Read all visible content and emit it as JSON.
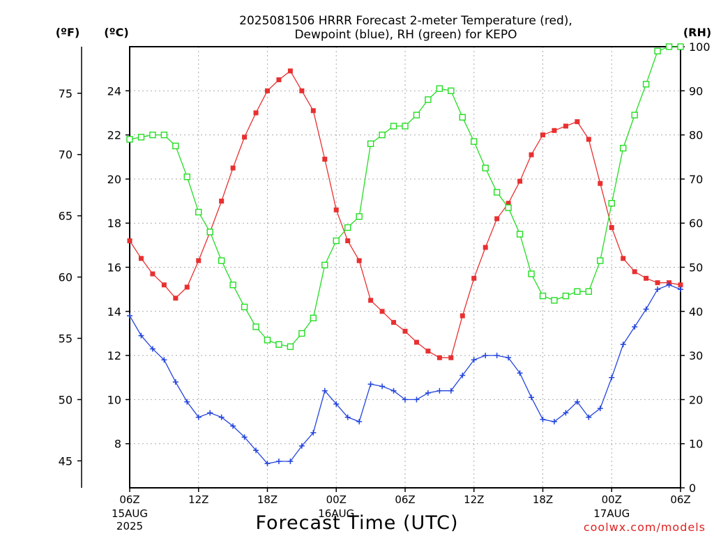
{
  "chart_data": {
    "type": "line",
    "title_line1": "2025081506 HRRR Forecast 2-meter Temperature (red),",
    "title_line2": "Dewpoint (blue), RH (green) for KEPO",
    "xlabel": "Forecast Time (UTC)",
    "credit": "coolwx.com/models",
    "units": {
      "left_f": "(ºF)",
      "left_c": "(ºC)",
      "right_rh": "(RH)"
    },
    "x_ticks": [
      {
        "h": 0,
        "label": "06Z",
        "sub1": "15AUG",
        "sub2": "2025"
      },
      {
        "h": 6,
        "label": "12Z"
      },
      {
        "h": 12,
        "label": "18Z"
      },
      {
        "h": 18,
        "label": "00Z",
        "sub1": "16AUG"
      },
      {
        "h": 24,
        "label": "06Z"
      },
      {
        "h": 30,
        "label": "12Z"
      },
      {
        "h": 36,
        "label": "18Z"
      },
      {
        "h": 42,
        "label": "00Z",
        "sub1": "17AUG"
      },
      {
        "h": 48,
        "label": "06Z"
      }
    ],
    "xlim": [
      0,
      48
    ],
    "ylim_c": [
      6,
      26
    ],
    "ylim_rh": [
      0,
      100
    ],
    "yticks_c": [
      8,
      10,
      12,
      14,
      16,
      18,
      20,
      22,
      24
    ],
    "yticks_f": [
      45,
      50,
      55,
      60,
      65,
      70,
      75
    ],
    "yticks_rh": [
      0,
      10,
      20,
      30,
      40,
      50,
      60,
      70,
      80,
      90,
      100
    ],
    "grid": true,
    "series": [
      {
        "name": "Temperature",
        "units": "C",
        "color": "#e83030",
        "marker": "filled-square",
        "values": [
          17.2,
          16.4,
          15.7,
          15.2,
          14.6,
          15.1,
          16.3,
          17.6,
          19.0,
          20.5,
          21.9,
          23.0,
          24.0,
          24.5,
          24.9,
          24.0,
          23.1,
          20.9,
          18.6,
          17.2,
          16.3,
          14.5,
          14.0,
          13.5,
          13.1,
          12.6,
          12.2,
          11.9,
          11.9,
          13.8,
          15.5,
          16.9,
          18.2,
          18.9,
          19.9,
          21.1,
          22.0,
          22.2,
          22.4,
          22.6,
          21.8,
          19.8,
          17.8,
          16.4,
          15.8,
          15.5,
          15.3,
          15.3,
          15.2
        ]
      },
      {
        "name": "Dewpoint",
        "units": "C",
        "color": "#2244dd",
        "marker": "plus",
        "values": [
          13.8,
          12.9,
          12.3,
          11.8,
          10.8,
          9.9,
          9.2,
          9.4,
          9.2,
          8.8,
          8.3,
          7.7,
          7.1,
          7.2,
          7.2,
          7.9,
          8.5,
          10.4,
          9.8,
          9.2,
          9.0,
          10.7,
          10.6,
          10.4,
          10.0,
          10.0,
          10.3,
          10.4,
          10.4,
          11.1,
          11.8,
          12.0,
          12.0,
          11.9,
          11.2,
          10.1,
          9.1,
          9.0,
          9.4,
          9.9,
          9.2,
          9.6,
          11.0,
          12.5,
          13.3,
          14.1,
          15.0,
          15.2,
          15.0
        ]
      },
      {
        "name": "RH",
        "units": "%",
        "color": "#22dd22",
        "marker": "open-square",
        "values": [
          79,
          79.5,
          80,
          80,
          77.5,
          70.5,
          62.5,
          58,
          51.5,
          46,
          41,
          36.5,
          33.5,
          32.5,
          32,
          35,
          38.5,
          50.5,
          56,
          59,
          61.5,
          78,
          80,
          82,
          82,
          84.5,
          88,
          90.5,
          90,
          84,
          78.5,
          72.5,
          67,
          63.5,
          57.5,
          48.5,
          43.5,
          42.5,
          43.5,
          44.5,
          44.5,
          51.5,
          64.5,
          77,
          84.5,
          91.5,
          99,
          100,
          100
        ]
      }
    ]
  }
}
